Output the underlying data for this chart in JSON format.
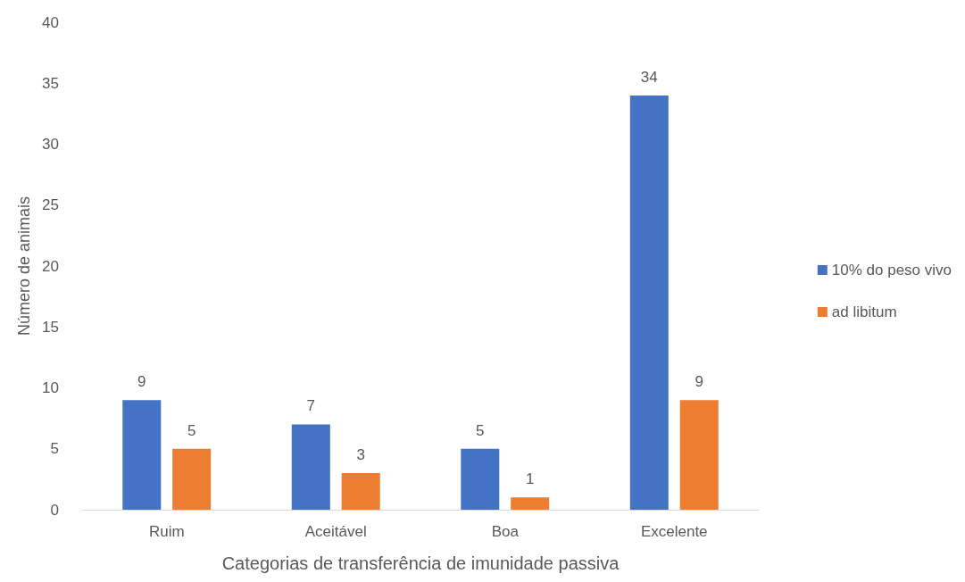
{
  "chart_data": {
    "type": "bar",
    "xlabel": "Categorias de transferência de imunidade passiva",
    "ylabel": "Número de animais",
    "categories": [
      "Ruim",
      "Aceitável",
      "Boa",
      "Excelente"
    ],
    "series": [
      {
        "name": "10% do peso vivo",
        "color": "#4472c4",
        "values": [
          9,
          7,
          5,
          34
        ]
      },
      {
        "name": "ad libitum",
        "color": "#ed7d31",
        "values": [
          5,
          3,
          1,
          9
        ]
      }
    ],
    "ylim": [
      0,
      40
    ],
    "yticks": [
      0,
      5,
      10,
      15,
      20,
      25,
      30,
      35,
      40
    ],
    "grid": false,
    "legend": "right",
    "data_labels": true
  }
}
